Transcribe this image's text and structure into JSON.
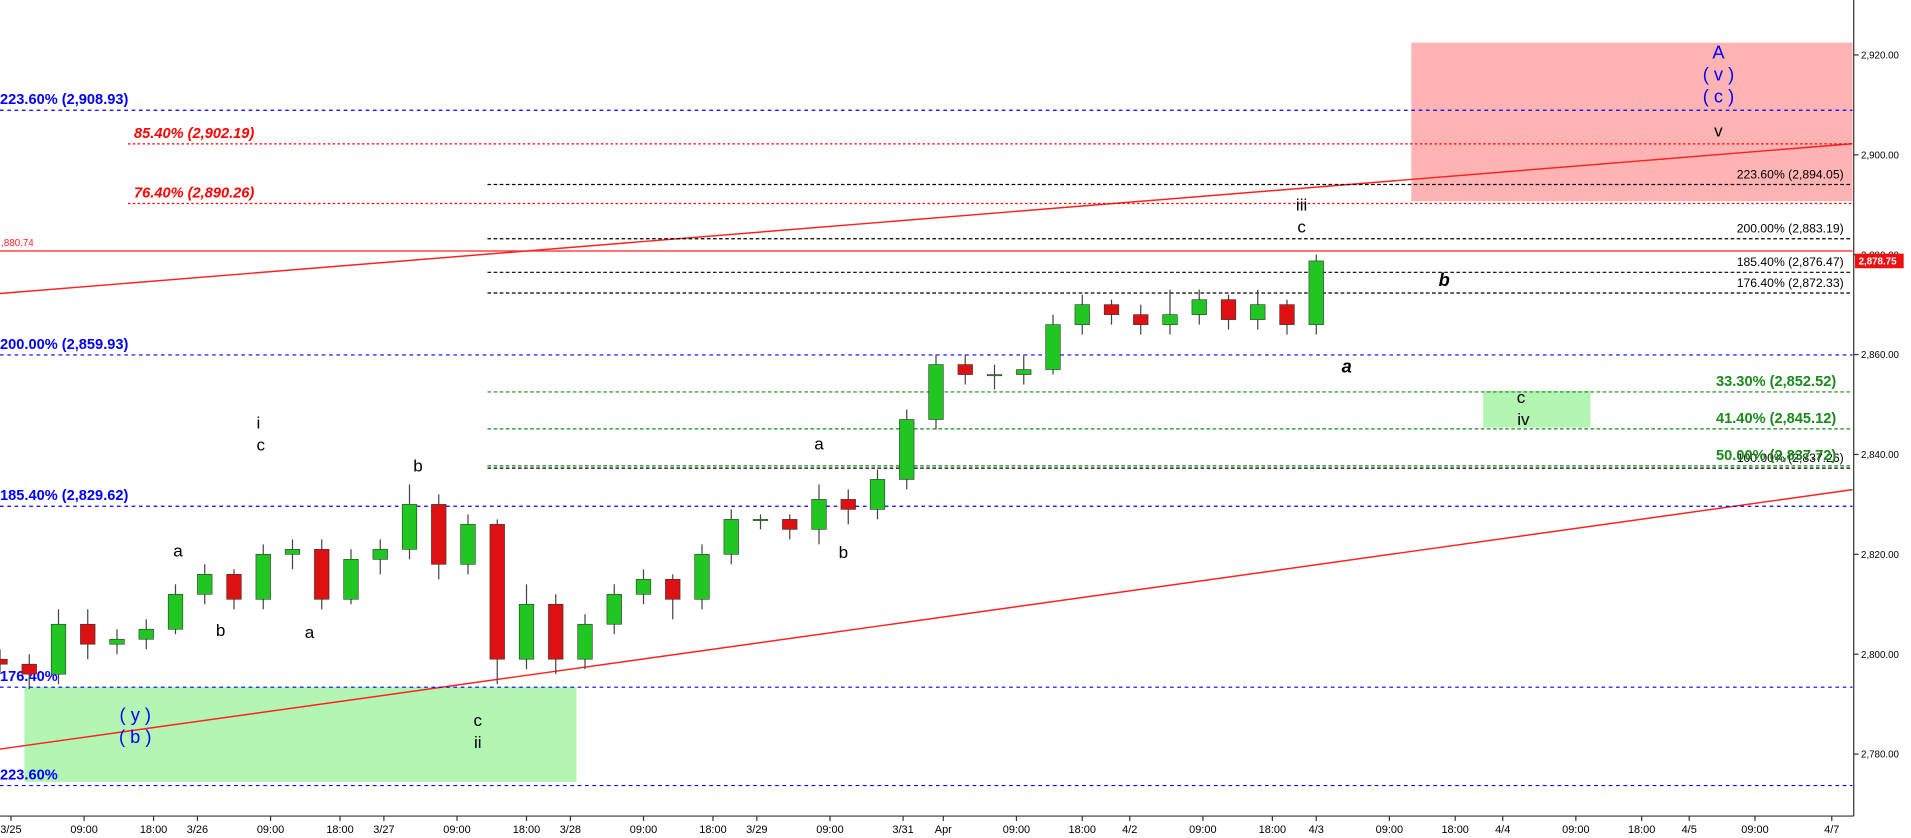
{
  "chart_data": {
    "type": "candlestick",
    "x": [
      0,
      4,
      8,
      12,
      16,
      20,
      24,
      28,
      32,
      36,
      40,
      44,
      48,
      52,
      56,
      60,
      64,
      68,
      72,
      76,
      80,
      84,
      88,
      92,
      96,
      100,
      104,
      108,
      112,
      116,
      120,
      124,
      128,
      132,
      136,
      140,
      144,
      148,
      152,
      156,
      160,
      164,
      168,
      172,
      176,
      180
    ],
    "open": [
      2799,
      2798,
      2796,
      2806,
      2802,
      2803,
      2805,
      2812,
      2816,
      2811,
      2820,
      2821,
      2811,
      2819,
      2821,
      2830,
      2818,
      2826,
      2799,
      2810,
      2799,
      2806,
      2812,
      2815,
      2811,
      2820,
      2827,
      2827,
      2825,
      2831,
      2829,
      2835,
      2847,
      2858,
      2856,
      2856,
      2857,
      2866,
      2870,
      2868,
      2866,
      2868,
      2871,
      2867,
      2870,
      2866
    ],
    "high": [
      2801,
      2800,
      2809,
      2809,
      2805,
      2807,
      2814,
      2818,
      2817,
      2822,
      2823,
      2823,
      2821,
      2823,
      2834,
      2832,
      2828,
      2827,
      2814,
      2812,
      2808,
      2814,
      2817,
      2816,
      2822,
      2829,
      2828,
      2828,
      2834,
      2833,
      2837,
      2849,
      2860,
      2860,
      2858,
      2860,
      2868,
      2872,
      2871,
      2870,
      2873,
      2873,
      2872,
      2873,
      2871,
      2880
    ],
    "low": [
      2796,
      2793,
      2794,
      2799,
      2800,
      2801,
      2804,
      2810,
      2809,
      2809,
      2817,
      2809,
      2810,
      2816,
      2819,
      2815,
      2816,
      2794,
      2797,
      2796,
      2797,
      2804,
      2810,
      2807,
      2809,
      2818,
      2825,
      2823,
      2822,
      2826,
      2827,
      2833,
      2845,
      2854,
      2853,
      2854,
      2856,
      2864,
      2866,
      2864,
      2864,
      2866,
      2865,
      2865,
      2864,
      2864
    ],
    "close": [
      2798,
      2796,
      2806,
      2802,
      2803,
      2805,
      2812,
      2816,
      2811,
      2820,
      2821,
      2811,
      2819,
      2821,
      2830,
      2818,
      2826,
      2799,
      2810,
      2799,
      2806,
      2812,
      2815,
      2811,
      2820,
      2827,
      2827,
      2825,
      2831,
      2829,
      2835,
      2847,
      2858,
      2856,
      2856,
      2857,
      2866,
      2870,
      2868,
      2866,
      2868,
      2871,
      2867,
      2870,
      2866,
      2878.75
    ],
    "xlim": [
      0,
      254
    ],
    "xticks": [
      {
        "value": 1.5,
        "label": "3/25"
      },
      {
        "value": 11.5,
        "label": "09:00"
      },
      {
        "value": 21,
        "label": "18:00"
      },
      {
        "value": 27,
        "label": "3/26"
      },
      {
        "value": 37,
        "label": "09:00"
      },
      {
        "value": 46.5,
        "label": "18:00"
      },
      {
        "value": 52.5,
        "label": "3/27"
      },
      {
        "value": 62.5,
        "label": "09:00"
      },
      {
        "value": 72,
        "label": "18:00"
      },
      {
        "value": 78,
        "label": "3/28"
      },
      {
        "value": 88,
        "label": "09:00"
      },
      {
        "value": 97.5,
        "label": "18:00"
      },
      {
        "value": 103.5,
        "label": "3/29"
      },
      {
        "value": 113.5,
        "label": "09:00"
      },
      {
        "value": 123.5,
        "label": "3/31"
      },
      {
        "value": 129,
        "label": "Apr"
      },
      {
        "value": 139,
        "label": "09:00"
      },
      {
        "value": 148,
        "label": "18:00"
      },
      {
        "value": 154.5,
        "label": "4/2"
      },
      {
        "value": 164.5,
        "label": "09:00"
      },
      {
        "value": 174,
        "label": "18:00"
      },
      {
        "value": 180,
        "label": "4/3"
      },
      {
        "value": 190,
        "label": "09:00"
      },
      {
        "value": 199,
        "label": "18:00"
      },
      {
        "value": 205.5,
        "label": "4/4"
      },
      {
        "value": 215.5,
        "label": "09:00"
      },
      {
        "value": 224.5,
        "label": "18:00"
      },
      {
        "value": 231,
        "label": "4/5"
      },
      {
        "value": 240,
        "label": "09:00"
      },
      {
        "value": 250.5,
        "label": "4/7"
      }
    ],
    "ylim": [
      2763.2,
      2931
    ],
    "yticks": [
      {
        "value": 2780,
        "label": "2,780.00"
      },
      {
        "value": 2800,
        "label": "2,800.00"
      },
      {
        "value": 2820,
        "label": "2,820.00"
      },
      {
        "value": 2840,
        "label": "2,840.00"
      },
      {
        "value": 2860,
        "label": "2,860.00"
      },
      {
        "value": 2880,
        "label": "2,880.00"
      },
      {
        "value": 2900,
        "label": "2,900.00"
      },
      {
        "value": 2920,
        "label": "2,920.00"
      }
    ],
    "up_color": "#22c622",
    "down_color": "#dd1111",
    "levels": [
      {
        "label": "223.60% (2,908.93)",
        "value": 2908.93,
        "color": "#0000ff"
      },
      {
        "label": "200.00% (2,859.93)",
        "value": 2859.93,
        "color": "#0000ff"
      },
      {
        "label": "185.40% (2,829.62)",
        "value": 2829.62,
        "color": "#0000ff"
      },
      {
        "label": "176.40%",
        "value": 2793.4,
        "color": "#0000ff"
      },
      {
        "label": "223.60%",
        "value": 2773.7,
        "color": "#0000ff"
      },
      {
        "label": "85.40% (2,902.19)",
        "value": 2902.19,
        "color": "#ff0000"
      },
      {
        "label": "76.40% (2,890.26)",
        "value": 2890.26,
        "color": "#ff0000"
      },
      {
        "label": "223.60% (2,894.05)",
        "value": 2894.05,
        "color": "#000000"
      },
      {
        "label": "200.00% (2,883.19)",
        "value": 2883.19,
        "color": "#000000"
      },
      {
        "label": "185.40% (2,876.47)",
        "value": 2876.47,
        "color": "#000000"
      },
      {
        "label": "176.40% (2,872.33)",
        "value": 2872.33,
        "color": "#000000"
      },
      {
        "label": "100.00% (2,837.26)",
        "value": 2837.26,
        "color": "#000000"
      },
      {
        "label": "33.30% (2,852.52)",
        "value": 2852.52,
        "color": "#1a8a1a"
      },
      {
        "label": "41.40% (2,845.12)",
        "value": 2845.12,
        "color": "#1a8a1a"
      },
      {
        "label": "50.00% (2,837.72)",
        "value": 2837.72,
        "color": "#1a8a1a"
      }
    ],
    "hline": {
      "value": 2880.74,
      "label": ",880.74"
    },
    "last_price": {
      "value": 2878.75,
      "label": "2,878.75"
    },
    "annotations": [
      {
        "text": "A",
        "color": "#0000ff"
      },
      {
        "text": "( v )",
        "color": "#0000ff"
      },
      {
        "text": "( c )",
        "color": "#0000ff"
      },
      {
        "text": "v",
        "color": "#000000"
      },
      {
        "text": "iii",
        "color": "#000000"
      },
      {
        "text": "c",
        "color": "#000000"
      },
      {
        "text": "b",
        "color": "#000000"
      },
      {
        "text": "a",
        "color": "#000000"
      },
      {
        "text": "c",
        "color": "#000000"
      },
      {
        "text": "iv",
        "color": "#000000"
      },
      {
        "text": "a",
        "color": "#000000"
      },
      {
        "text": "b",
        "color": "#000000"
      },
      {
        "text": "i",
        "color": "#000000"
      },
      {
        "text": "c",
        "color": "#000000"
      },
      {
        "text": "b",
        "color": "#000000"
      },
      {
        "text": "a",
        "color": "#000000"
      },
      {
        "text": "b",
        "color": "#000000"
      },
      {
        "text": "a",
        "color": "#000000"
      },
      {
        "text": "c",
        "color": "#000000"
      },
      {
        "text": "ii",
        "color": "#000000"
      },
      {
        "text": "( y )",
        "color": "#0000ff"
      },
      {
        "text": "( b )",
        "color": "#0000ff"
      }
    ]
  }
}
